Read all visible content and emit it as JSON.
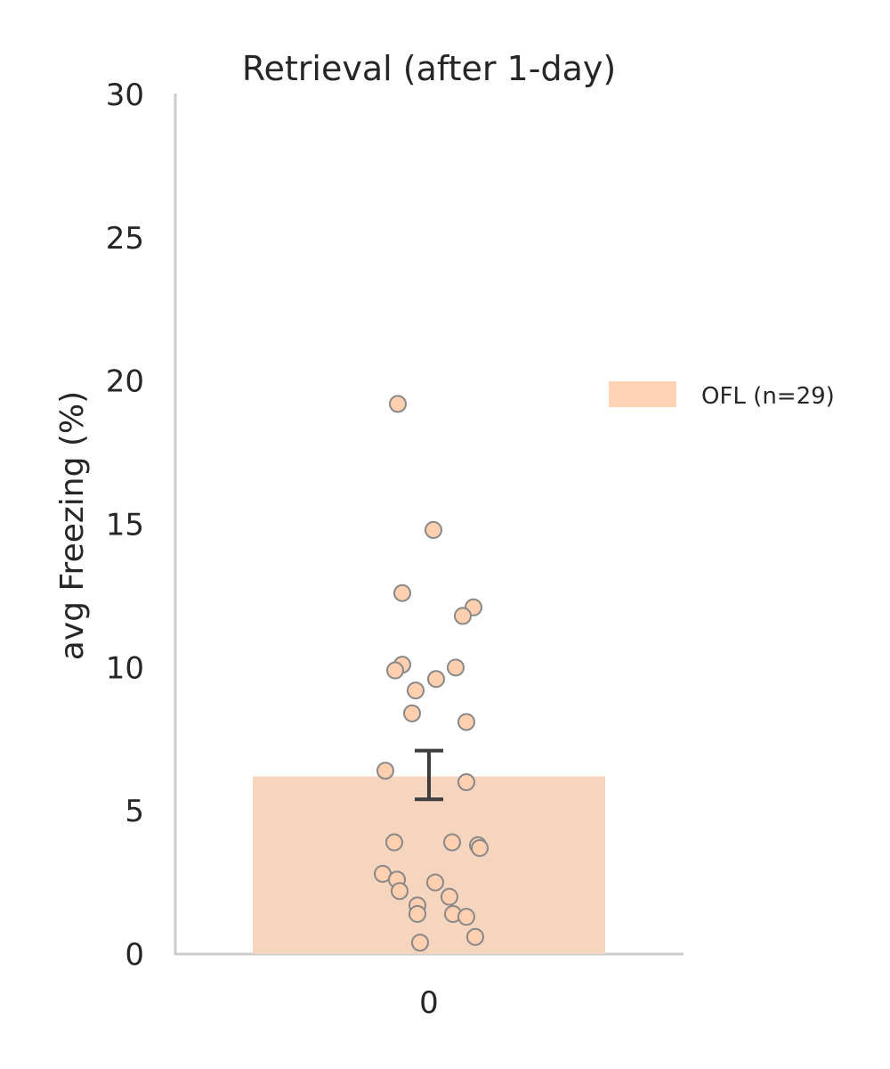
{
  "chart_data": {
    "type": "bar",
    "title": "Retrieval (after 1-day)",
    "xlabel": "",
    "ylabel": "avg Freezing (%)",
    "categories": [
      "0"
    ],
    "ylim": [
      0,
      30
    ],
    "yticks": [
      0,
      5,
      10,
      15,
      20,
      25,
      30
    ],
    "grid": false,
    "legend_position": "right",
    "series": [
      {
        "name": "OFL (n=29)",
        "color": "#F5D5BE",
        "legend_color": "#FFD3B6",
        "values": [
          6.2
        ],
        "error": [
          5.4,
          7.1
        ],
        "points": [
          19.2,
          14.8,
          12.6,
          12.1,
          11.8,
          10.1,
          10.0,
          9.9,
          9.6,
          9.2,
          8.4,
          8.1,
          6.4,
          6.0,
          3.9,
          3.9,
          3.8,
          3.7,
          2.8,
          2.6,
          2.5,
          2.2,
          2.0,
          1.7,
          1.4,
          1.4,
          1.3,
          0.6,
          0.4
        ],
        "point_color": "#FFCFAF",
        "point_edge": "#888888"
      }
    ]
  }
}
